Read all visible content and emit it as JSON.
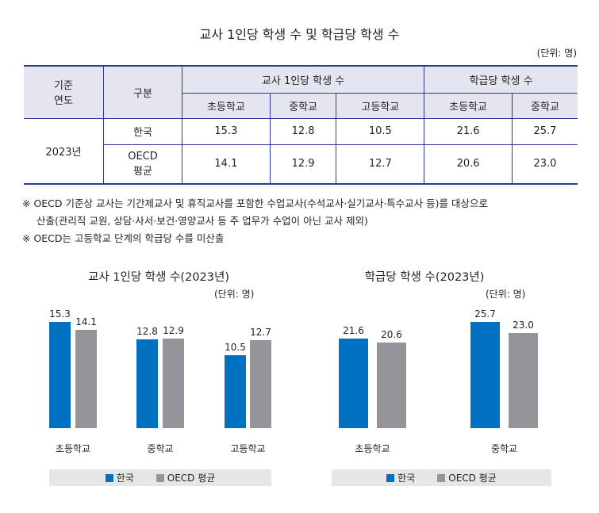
{
  "title": "교사 1인당 학생 수 및 학급당 학생 수",
  "unit": "(단위: 명)",
  "table": {
    "h_year": "기준\n연도",
    "h_year1": "기준",
    "h_year2": "연도",
    "h_group": "구분",
    "h_ptr": "교사 1인당 학생 수",
    "h_class": "학급당 학생 수",
    "sub": [
      "초등학교",
      "중학교",
      "고등학교",
      "초등학교",
      "중학교"
    ],
    "year": "2023년",
    "rows": [
      {
        "label": "한국",
        "values": [
          "15.3",
          "12.8",
          "10.5",
          "21.6",
          "25.7"
        ]
      },
      {
        "label": "OECD\n평균",
        "label1": "OECD",
        "label2": "평균",
        "values": [
          "14.1",
          "12.9",
          "12.7",
          "20.6",
          "23.0"
        ]
      }
    ]
  },
  "notes": [
    "※ OECD 기준상 교사는 기간제교사 및 휴직교사를 포함한 수업교사(수석교사·실기교사·특수교사 등)를 대상으로",
    "산출(관리직 교원, 상담·사서·보건·영양교사 등 주 업무가 수업이 아닌 교사 제외)",
    "※ OECD는 고등학교 단계의 학급당 수를 미산출"
  ],
  "colors": {
    "korea": "#0070c0",
    "oecd": "#939598"
  },
  "chart_data": [
    {
      "type": "bar",
      "title": "교사 1인당 학생 수(2023년)",
      "unit": "(단위: 명)",
      "categories": [
        "초등학교",
        "중학교",
        "고등학교"
      ],
      "series": [
        {
          "name": "한국",
          "values": [
            15.3,
            12.8,
            10.5
          ]
        },
        {
          "name": "OECD 평균",
          "values": [
            14.1,
            12.9,
            12.7
          ]
        }
      ],
      "ylim": [
        0,
        18
      ],
      "legend": "bottom"
    },
    {
      "type": "bar",
      "title": "학급당 학생 수(2023년)",
      "unit": "(단위: 명)",
      "categories": [
        "초등학교",
        "중학교"
      ],
      "series": [
        {
          "name": "한국",
          "values": [
            21.6,
            25.7
          ]
        },
        {
          "name": "OECD 평균",
          "values": [
            20.6,
            23.0
          ]
        }
      ],
      "ylim": [
        0,
        30
      ],
      "legend": "bottom"
    }
  ]
}
